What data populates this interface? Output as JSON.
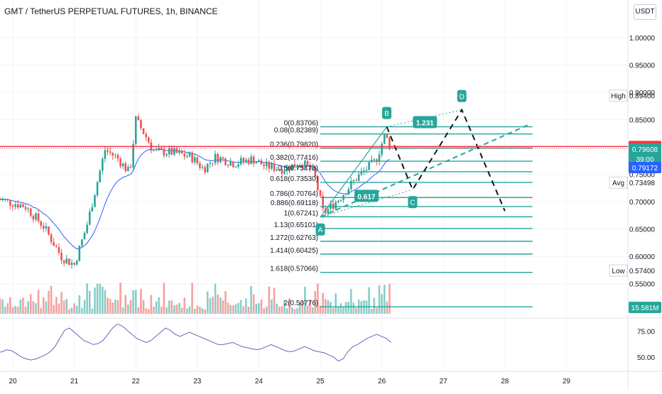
{
  "chart_data": {
    "type": "candlestick",
    "title": "GMT / TetherUS PERPETUAL FUTURES, 1h, BINANCE",
    "currency": "USDT",
    "colors": {
      "up": "#26a69a",
      "down": "#ef5350",
      "ma": "#2962ff",
      "rsi": "#7e57c2",
      "pattern": "#26a69a",
      "fib": "#26a69a",
      "price_line": "#f23645",
      "grid": "#f0f3fa"
    },
    "y_range": [
      0.495,
      1.03
    ],
    "price_ticks": [
      "1.00000",
      "0.95000",
      "0.90000",
      "0.85000",
      "0.80000",
      "0.75000",
      "0.70000",
      "0.65000",
      "0.60000",
      "0.55000"
    ],
    "rsi_ticks": [
      "75.00",
      "50.00"
    ],
    "x_ticks": [
      "20",
      "21",
      "22",
      "23",
      "24",
      "25",
      "26",
      "27",
      "28",
      "29"
    ],
    "price_tags": [
      {
        "name": "high",
        "label": "High",
        "value": "0.89400",
        "y": 0.894,
        "style": "plain"
      },
      {
        "name": "last-price",
        "label": "",
        "value": "0.80101",
        "y": 0.80101,
        "style": "red"
      },
      {
        "name": "ma-value",
        "label": "",
        "value": "0.79608",
        "y": 0.79608,
        "style": "green",
        "sub": "39:00"
      },
      {
        "name": "ma-blue",
        "label": "",
        "value": "0.79172",
        "y": 0.7625,
        "style": "blue"
      },
      {
        "name": "avg",
        "label": "Avg",
        "value": "0.73498",
        "y": 0.73498,
        "style": "plain"
      },
      {
        "name": "low",
        "label": "Low",
        "value": "0.57400",
        "y": 0.574,
        "style": "plain"
      }
    ],
    "volume_tag": "15.581M",
    "fib_levels": [
      {
        "ratio": "0",
        "price": "0.83706"
      },
      {
        "ratio": "0.08",
        "price": "0.82389"
      },
      {
        "ratio": "0.236",
        "price": "0.79820"
      },
      {
        "ratio": "0.382",
        "price": "0.77416"
      },
      {
        "ratio": "0.5",
        "price": "0.75473"
      },
      {
        "ratio": "0.618",
        "price": "0.73530"
      },
      {
        "ratio": "0.786",
        "price": "0.70764"
      },
      {
        "ratio": "0.886",
        "price": "0.69118"
      },
      {
        "ratio": "1",
        "price": "0.67241"
      },
      {
        "ratio": "1.13",
        "price": "0.65101"
      },
      {
        "ratio": "1.272",
        "price": "0.62763"
      },
      {
        "ratio": "1.414",
        "price": "0.60425"
      },
      {
        "ratio": "1.618",
        "price": "0.57066"
      },
      {
        "ratio": "2",
        "price": "0.50776"
      }
    ],
    "pattern_points": [
      {
        "label": "A",
        "day": 25.0,
        "price": 0.672
      },
      {
        "label": "B",
        "day": 26.08,
        "price": 0.837
      },
      {
        "label": "C",
        "day": 26.5,
        "price": 0.722
      },
      {
        "label": "D",
        "day": 27.3,
        "price": 0.868
      },
      {
        "label": "",
        "day": 28.0,
        "price": 0.683
      }
    ],
    "pattern_ratios": [
      "0.617",
      "1.231"
    ],
    "price_line_value": 0.80101,
    "rsi_values": [
      54,
      55,
      57,
      56,
      53,
      50,
      48,
      47,
      48,
      50,
      52,
      55,
      60,
      68,
      76,
      78,
      74,
      70,
      66,
      64,
      62,
      63,
      66,
      72,
      78,
      82,
      80,
      76,
      72,
      68,
      66,
      64,
      66,
      70,
      74,
      78,
      76,
      72,
      70,
      72,
      74,
      72,
      70,
      68,
      66,
      64,
      62,
      62,
      63,
      64,
      62,
      60,
      59,
      58,
      57,
      58,
      60,
      62,
      60,
      58,
      56,
      55,
      56,
      58,
      60,
      58,
      56,
      55,
      54,
      52,
      50,
      46,
      48,
      55,
      60,
      62,
      65,
      68,
      70,
      72,
      70,
      68,
      64
    ]
  }
}
